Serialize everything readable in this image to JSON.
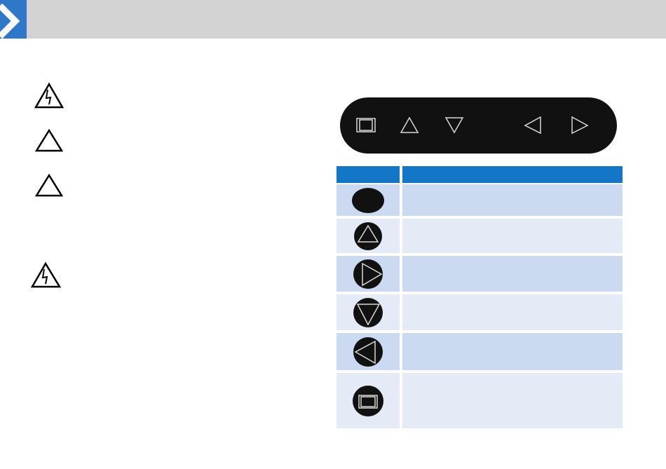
{
  "colors": {
    "header_bar": "#d3d3d3",
    "accent": "#2f77c8",
    "table_header": "#1476c6",
    "row_dark": "#cbd9f1",
    "row_light": "#e4eaf6",
    "panel": "#111111",
    "glyph": "#d8d8d8"
  },
  "header": {
    "icon": "chevron-right-icon"
  },
  "warnings": [
    {
      "icon": "electric-shock-warning-icon"
    },
    {
      "icon": "caution-triangle-icon"
    },
    {
      "icon": "caution-triangle-icon"
    },
    {
      "icon": "electric-shock-warning-icon"
    }
  ],
  "control_panel": {
    "buttons": [
      {
        "icon": "menu-square-icon"
      },
      {
        "icon": "up-triangle-icon"
      },
      {
        "icon": "down-triangle-icon"
      },
      {
        "icon": "left-triangle-icon"
      },
      {
        "icon": "right-triangle-icon"
      }
    ]
  },
  "button_table": {
    "rows": [
      {
        "icon": "power-button-icon"
      },
      {
        "icon": "up-button-icon"
      },
      {
        "icon": "right-button-icon"
      },
      {
        "icon": "down-button-icon"
      },
      {
        "icon": "left-button-icon"
      },
      {
        "icon": "menu-button-icon"
      }
    ]
  }
}
